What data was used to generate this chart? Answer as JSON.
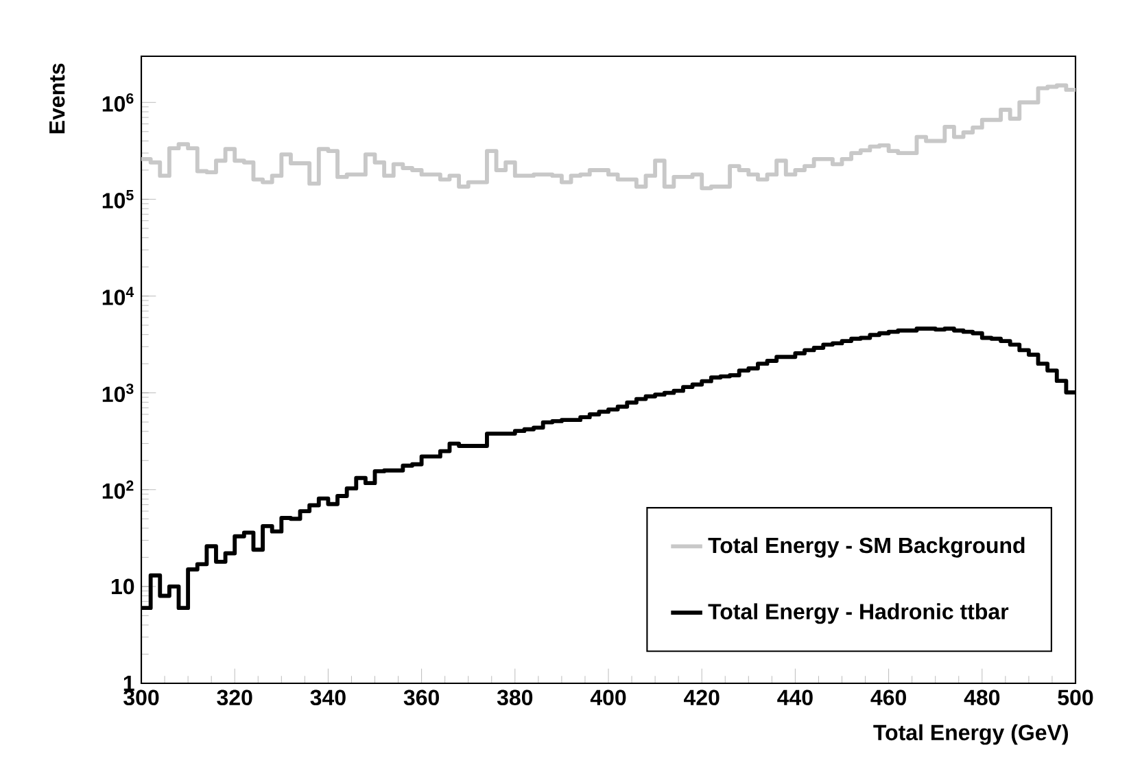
{
  "chart_data": {
    "type": "histogram",
    "xlabel": "Total Energy (GeV)",
    "ylabel": "Events",
    "log": "y",
    "grid": false,
    "legend": "bottom right",
    "bins": [
      300,
      302,
      304,
      306,
      308,
      310,
      312,
      314,
      316,
      318,
      320,
      322,
      324,
      326,
      328,
      330,
      332,
      334,
      336,
      338,
      340,
      342,
      344,
      346,
      348,
      350,
      352,
      354,
      356,
      358,
      360,
      362,
      364,
      366,
      368,
      370,
      372,
      374,
      376,
      378,
      380,
      382,
      384,
      386,
      388,
      390,
      392,
      394,
      396,
      398,
      400,
      402,
      404,
      406,
      408,
      410,
      412,
      414,
      416,
      418,
      420,
      422,
      424,
      426,
      428,
      430,
      432,
      434,
      436,
      438,
      440,
      442,
      444,
      446,
      448,
      450,
      452,
      454,
      456,
      458,
      460,
      462,
      464,
      466,
      468,
      470,
      472,
      474,
      476,
      478,
      480,
      482,
      484,
      486,
      488,
      490,
      492,
      494,
      496,
      498,
      500
    ],
    "xlim": [
      300,
      500
    ],
    "xticks": [
      300,
      320,
      340,
      360,
      380,
      400,
      420,
      440,
      460,
      480,
      500
    ],
    "ylim": [
      1,
      3000000
    ],
    "yticks": [
      1,
      10,
      {
        "value": 100,
        "label": "10$^{2}$"
      },
      {
        "value": 1000,
        "label": "10$^{3}$"
      },
      {
        "value": 10000,
        "label": "10$^{4}$"
      },
      {
        "value": 100000,
        "label": "10$^{5}$"
      },
      {
        "value": 1000000,
        "label": "10$^{6}$"
      }
    ],
    "series": [
      {
        "name": "Total Energy - SM Background",
        "color": "#c8c8c8",
        "values": [
          260000,
          240000,
          175000,
          336000,
          370000,
          336000,
          195000,
          190000,
          250000,
          330000,
          250000,
          240000,
          160000,
          150000,
          175000,
          290000,
          235000,
          235000,
          145000,
          330000,
          315000,
          170000,
          180000,
          180000,
          290000,
          240000,
          175000,
          230000,
          210000,
          200000,
          180000,
          180000,
          160000,
          175000,
          135000,
          150000,
          150000,
          315000,
          200000,
          240000,
          175000,
          175000,
          180000,
          180000,
          175000,
          150000,
          175000,
          180000,
          200000,
          200000,
          180000,
          160000,
          160000,
          135000,
          175000,
          250000,
          135000,
          170000,
          170000,
          180000,
          130000,
          135000,
          135000,
          220000,
          200000,
          180000,
          160000,
          180000,
          250000,
          180000,
          200000,
          220000,
          260000,
          260000,
          230000,
          260000,
          300000,
          320000,
          350000,
          360000,
          315000,
          300000,
          300000,
          440000,
          400000,
          400000,
          560000,
          440000,
          490000,
          550000,
          660000,
          660000,
          840000,
          680000,
          1000000,
          1000000,
          1400000,
          1450000,
          1500000,
          1350000
        ]
      },
      {
        "name": "Total Energy - Hadronic ttbar",
        "color": "#000000",
        "values": [
          6,
          13,
          8,
          10,
          6,
          15,
          17,
          26,
          18,
          22,
          33,
          36,
          24,
          42,
          37,
          51,
          50,
          60,
          69,
          81,
          71,
          86,
          103,
          132,
          117,
          155,
          158,
          158,
          177,
          183,
          220,
          220,
          250,
          299,
          283,
          283,
          283,
          379,
          379,
          379,
          404,
          420,
          437,
          496,
          510,
          525,
          525,
          560,
          600,
          638,
          674,
          720,
          794,
          864,
          920,
          960,
          1000,
          1050,
          1150,
          1220,
          1320,
          1440,
          1480,
          1520,
          1700,
          1790,
          2000,
          2140,
          2350,
          2350,
          2560,
          2760,
          2920,
          3150,
          3250,
          3430,
          3620,
          3700,
          3960,
          4130,
          4270,
          4410,
          4410,
          4610,
          4610,
          4510,
          4610,
          4410,
          4270,
          4130,
          3700,
          3620,
          3430,
          3150,
          2760,
          2480,
          2000,
          1700,
          1330,
          1010
        ]
      }
    ]
  }
}
